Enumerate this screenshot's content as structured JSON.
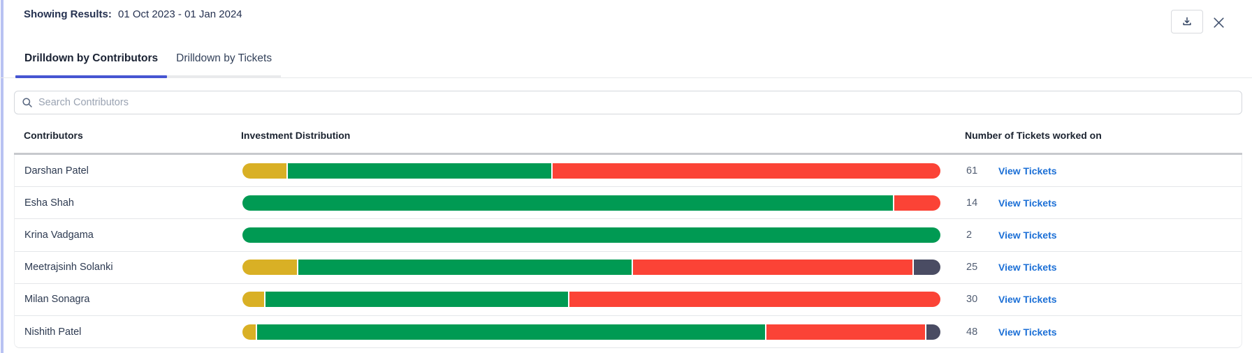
{
  "header": {
    "results_label": "Showing Results:",
    "date_range": "01 Oct 2023 - 01 Jan 2024"
  },
  "tabs": [
    {
      "label": "Drilldown by Contributors",
      "active": true
    },
    {
      "label": "Drilldown by Tickets",
      "active": false
    }
  ],
  "search": {
    "placeholder": "Search Contributors",
    "value": ""
  },
  "table": {
    "columns": [
      "Contributors",
      "Investment Distribution",
      "Number of Tickets worked on"
    ],
    "link_label": "View Tickets",
    "rows": [
      {
        "name": "Darshan Patel",
        "tickets": "61",
        "segments": [
          {
            "color": "yellow",
            "pct": 6.3
          },
          {
            "color": "green",
            "pct": 37.9
          },
          {
            "color": "red",
            "pct": 55.8
          }
        ]
      },
      {
        "name": "Esha Shah",
        "tickets": "14",
        "segments": [
          {
            "color": "green",
            "pct": 93.4
          },
          {
            "color": "red",
            "pct": 6.6
          }
        ]
      },
      {
        "name": "Krina Vadgama",
        "tickets": "2",
        "segments": [
          {
            "color": "green",
            "pct": 100
          }
        ]
      },
      {
        "name": "Meetrajsinh Solanki",
        "tickets": "25",
        "segments": [
          {
            "color": "yellow",
            "pct": 7.9
          },
          {
            "color": "green",
            "pct": 48.0
          },
          {
            "color": "red",
            "pct": 40.3
          },
          {
            "color": "dark",
            "pct": 3.8
          }
        ]
      },
      {
        "name": "Milan Sonagra",
        "tickets": "30",
        "segments": [
          {
            "color": "yellow",
            "pct": 3.1
          },
          {
            "color": "green",
            "pct": 43.5
          },
          {
            "color": "red",
            "pct": 53.4
          }
        ]
      },
      {
        "name": "Nishith Patel",
        "tickets": "48",
        "segments": [
          {
            "color": "yellow",
            "pct": 1.9
          },
          {
            "color": "green",
            "pct": 73.2
          },
          {
            "color": "red",
            "pct": 22.9
          },
          {
            "color": "dark",
            "pct": 2.0
          }
        ]
      }
    ]
  },
  "colors": {
    "yellow": "#d9b025",
    "green": "#009a53",
    "red": "#fb4336",
    "dark": "#4a4c63",
    "link": "#1b6fd6",
    "tab_indicator": "#4655d2"
  }
}
